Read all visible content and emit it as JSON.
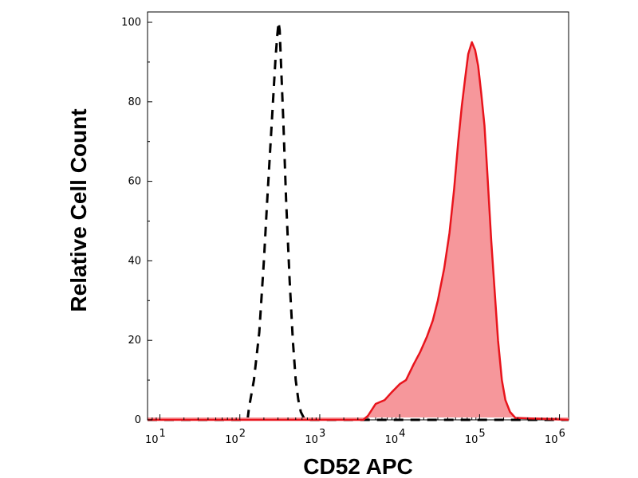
{
  "chart_data": {
    "type": "area",
    "title": "",
    "xlabel": "CD52 APC",
    "ylabel": "Relative Cell Count",
    "xscale": "log",
    "xlim": [
      7,
      1300000
    ],
    "ylim": [
      0,
      102
    ],
    "x_ticks": [
      {
        "value": 10,
        "base": "10",
        "exp": "1"
      },
      {
        "value": 100,
        "base": "10",
        "exp": "2"
      },
      {
        "value": 1000,
        "base": "10",
        "exp": "3"
      },
      {
        "value": 10000,
        "base": "10",
        "exp": "4"
      },
      {
        "value": 100000,
        "base": "10",
        "exp": "5"
      },
      {
        "value": 1000000,
        "base": "10",
        "exp": "6"
      }
    ],
    "y_ticks": [
      0,
      20,
      40,
      60,
      80,
      100
    ],
    "grid": false,
    "legend": false,
    "series": [
      {
        "style": "dashed",
        "color": "#000000",
        "fill": false,
        "points": [
          [
            7,
            0
          ],
          [
            100,
            0
          ],
          [
            125,
            0
          ],
          [
            130,
            3
          ],
          [
            150,
            10
          ],
          [
            175,
            22
          ],
          [
            200,
            40
          ],
          [
            220,
            55
          ],
          [
            240,
            68
          ],
          [
            260,
            80
          ],
          [
            280,
            91
          ],
          [
            295,
            97
          ],
          [
            305,
            100
          ],
          [
            315,
            98
          ],
          [
            330,
            88
          ],
          [
            350,
            75
          ],
          [
            380,
            55
          ],
          [
            420,
            35
          ],
          [
            460,
            20
          ],
          [
            500,
            10
          ],
          [
            540,
            5
          ],
          [
            580,
            2
          ],
          [
            650,
            0
          ],
          [
            1300000,
            0
          ]
        ]
      },
      {
        "style": "solid",
        "color": "#e8141c",
        "fill": true,
        "fill_color": "#f6979b",
        "points": [
          [
            7,
            0
          ],
          [
            3500,
            0
          ],
          [
            4000,
            1
          ],
          [
            5000,
            4
          ],
          [
            6500,
            5
          ],
          [
            8000,
            7
          ],
          [
            10000,
            9
          ],
          [
            12000,
            10
          ],
          [
            15000,
            14
          ],
          [
            18000,
            17
          ],
          [
            22000,
            21
          ],
          [
            26000,
            25
          ],
          [
            30000,
            30
          ],
          [
            36000,
            38
          ],
          [
            42000,
            47
          ],
          [
            48000,
            58
          ],
          [
            54000,
            70
          ],
          [
            60000,
            79
          ],
          [
            66000,
            86
          ],
          [
            72000,
            92
          ],
          [
            80000,
            95
          ],
          [
            88000,
            93
          ],
          [
            96000,
            89
          ],
          [
            105000,
            82
          ],
          [
            115000,
            74
          ],
          [
            125000,
            62
          ],
          [
            140000,
            45
          ],
          [
            155000,
            32
          ],
          [
            170000,
            20
          ],
          [
            190000,
            10
          ],
          [
            210000,
            5
          ],
          [
            240000,
            2
          ],
          [
            280000,
            0.5
          ],
          [
            1300000,
            0
          ]
        ]
      }
    ]
  }
}
